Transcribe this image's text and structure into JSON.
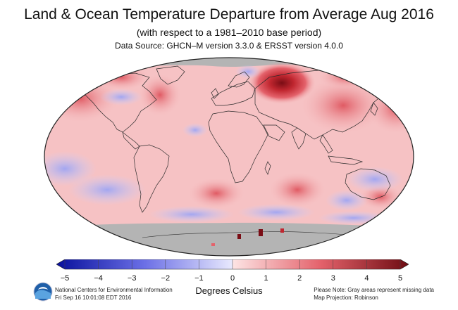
{
  "title": "Land & Ocean Temperature Departure from Average Aug 2016",
  "subtitle": "(with respect to a 1981–2010 base period)",
  "source_line": "Data Source: GHCN–M version 3.3.0 & ERSST version 4.0.0",
  "colorbar": {
    "ticks": [
      "−5",
      "−4",
      "−3",
      "−2",
      "−1",
      "0",
      "1",
      "2",
      "3",
      "4",
      "5"
    ],
    "min": -5,
    "max": 5,
    "colors": {
      "neg_end": "#08109c",
      "neg_mid": "#6b6fe6",
      "neg_light": "#d8d9fb",
      "pos_light": "#fcd6d6",
      "pos_mid": "#e4626b",
      "pos_end": "#6e0c12",
      "missing": "#b4b4b4"
    }
  },
  "units_label": "Degrees Celsius",
  "footer_left": {
    "line1": "National Centers for Environmental Information",
    "line2": "Fri Sep 16 10:01:08 EDT 2016"
  },
  "footer_right": {
    "line1": "Please Note: Gray areas represent missing data",
    "line2": "Map Projection: Robinson"
  },
  "logo": {
    "name": "noaa-logo",
    "text": "NOAA"
  },
  "map_data": {
    "projection": "Robinson",
    "regions": [
      {
        "label": "arctic-missing",
        "anomaly": null
      },
      {
        "label": "western-russia-hotspot",
        "anomaly": 5
      },
      {
        "label": "north-atlantic-warm",
        "anomaly": 3
      },
      {
        "label": "north-pacific-warm",
        "anomaly": 2.5
      },
      {
        "label": "east-asia-warm",
        "anomaly": 2.5
      },
      {
        "label": "south-pacific-cool",
        "anomaly": -1
      },
      {
        "label": "southern-ocean-cool",
        "anomaly": -1
      },
      {
        "label": "antarctica-missing",
        "anomaly": null
      }
    ]
  }
}
